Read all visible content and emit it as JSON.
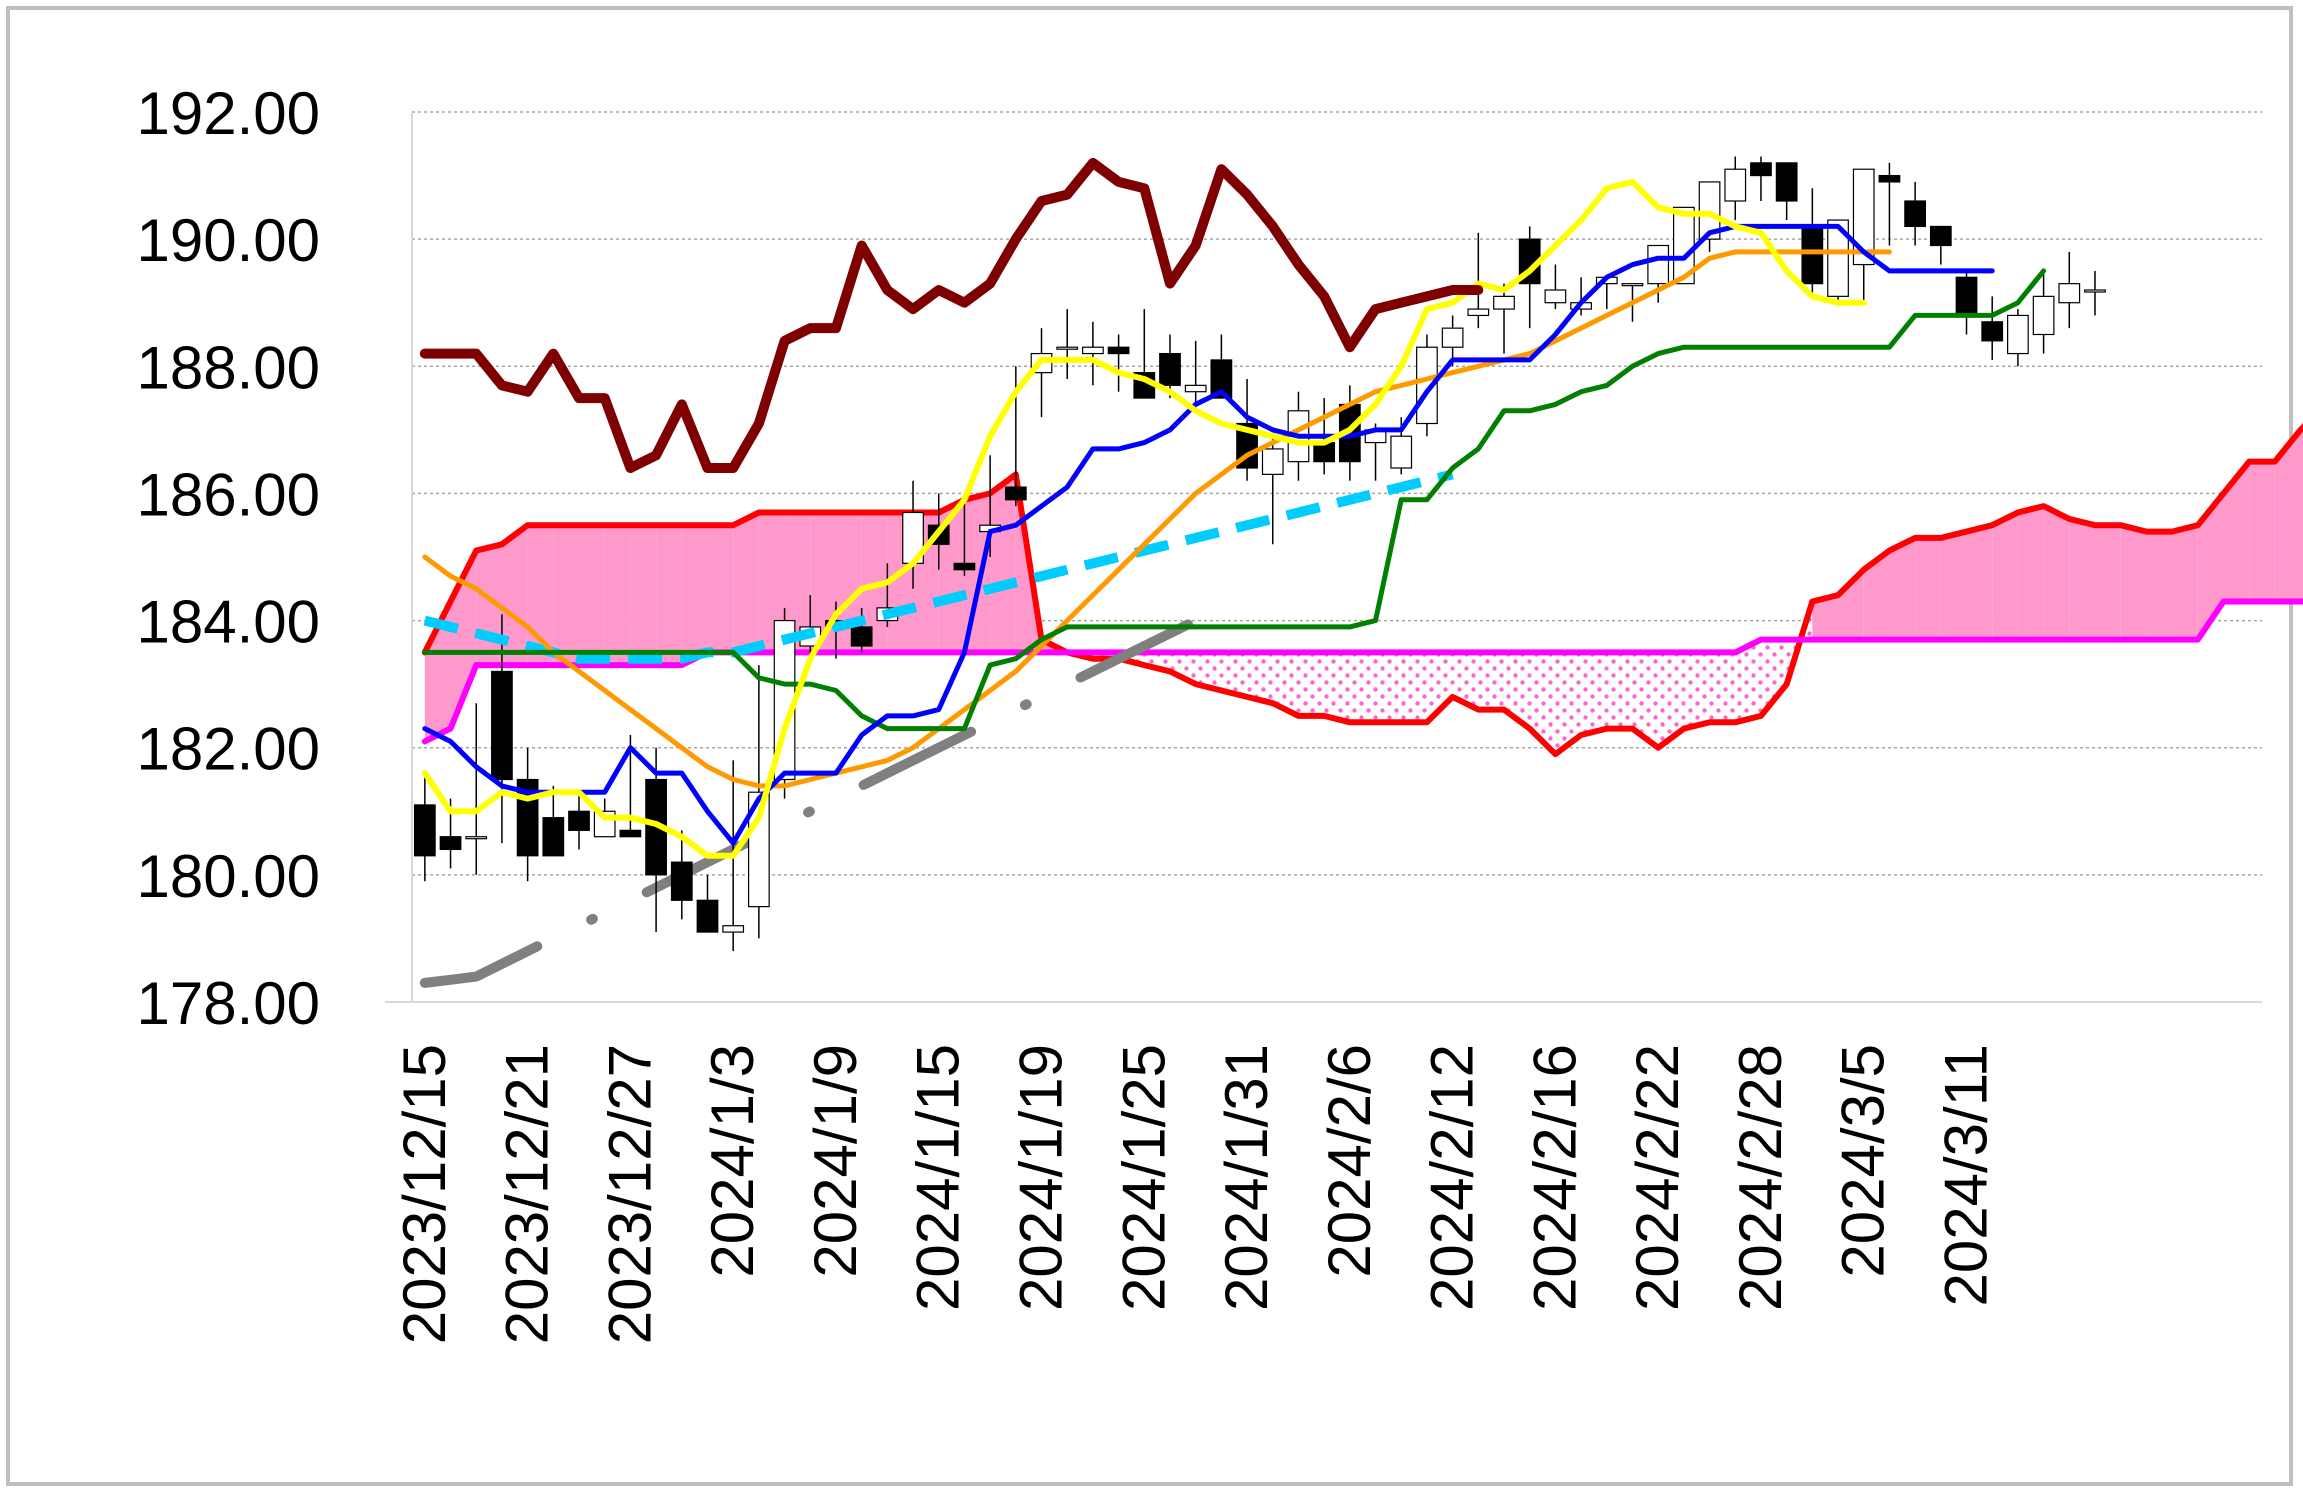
{
  "chart_data": {
    "type": "line",
    "title": "",
    "xlabel": "",
    "ylabel": "",
    "ylim": [
      178,
      192
    ],
    "yticks": [
      178,
      180,
      182,
      184,
      186,
      188,
      190,
      192
    ],
    "ytick_labels": [
      "178.00",
      "180.00",
      "182.00",
      "184.00",
      "186.00",
      "188.00",
      "190.00",
      "192.00"
    ],
    "grid": "horizontal-dotted",
    "legend": "none",
    "x_tick_labels": [
      "2023/12/15",
      "2023/12/21",
      "2023/12/27",
      "2024/1/3",
      "2024/1/9",
      "2024/1/15",
      "2024/1/19",
      "2024/1/25",
      "2024/1/31",
      "2024/2/6",
      "2024/2/12",
      "2024/2/16",
      "2024/2/22",
      "2024/2/28",
      "2024/3/5",
      "2024/3/11"
    ],
    "x_tick_index": [
      0,
      4,
      8,
      12,
      16,
      20,
      24,
      28,
      32,
      36,
      40,
      44,
      48,
      52,
      56,
      60
    ],
    "n_slots": 72,
    "candles": {
      "open": [
        181.1,
        180.6,
        180.6,
        183.2,
        181.5,
        180.9,
        181.0,
        180.6,
        180.7,
        181.5,
        180.2,
        179.6,
        179.1,
        179.5,
        181.5,
        183.6,
        184.0,
        183.9,
        184.0,
        184.9,
        185.5,
        184.9,
        185.4,
        186.1,
        187.9,
        188.3,
        188.2,
        188.3,
        187.9,
        188.2,
        187.6,
        188.1,
        187.1,
        186.3,
        186.5,
        186.8,
        187.4,
        186.8,
        186.4,
        187.1,
        188.3,
        188.8,
        188.9,
        190.0,
        189.0,
        188.9,
        189.3,
        189.3,
        189.3,
        189.3,
        190.0,
        190.6,
        191.2,
        191.2,
        190.2,
        189.1,
        189.6,
        191.0,
        190.6,
        190.2,
        189.4,
        188.7,
        188.2,
        188.5,
        189.0,
        189.2
      ],
      "high": [
        181.6,
        181.2,
        182.7,
        184.1,
        182.0,
        181.4,
        181.3,
        181.2,
        182.2,
        182.0,
        180.7,
        180.0,
        181.8,
        183.3,
        184.2,
        184.4,
        184.3,
        184.2,
        184.9,
        186.2,
        186.0,
        186.0,
        186.6,
        188.0,
        188.6,
        188.9,
        188.7,
        188.5,
        188.9,
        188.5,
        188.4,
        188.5,
        187.8,
        186.9,
        187.6,
        187.5,
        187.7,
        187.1,
        187.2,
        188.5,
        188.8,
        190.1,
        189.3,
        190.2,
        189.6,
        189.4,
        189.4,
        189.3,
        189.5,
        190.0,
        190.6,
        191.3,
        191.3,
        191.2,
        190.8,
        190.2,
        191.1,
        191.2,
        190.9,
        190.2,
        189.5,
        189.1,
        188.9,
        189.5,
        189.8,
        189.5
      ],
      "low": [
        179.9,
        180.1,
        180.0,
        180.5,
        179.9,
        180.4,
        180.4,
        180.6,
        180.6,
        179.1,
        179.3,
        179.3,
        178.8,
        179.0,
        181.2,
        183.5,
        183.4,
        183.5,
        183.9,
        184.5,
        184.8,
        184.7,
        185.0,
        185.8,
        187.2,
        187.8,
        187.7,
        187.6,
        187.5,
        187.5,
        187.4,
        187.5,
        186.2,
        185.2,
        186.2,
        186.3,
        186.2,
        186.2,
        186.3,
        186.9,
        188.0,
        188.6,
        188.2,
        188.6,
        188.9,
        188.8,
        188.9,
        188.7,
        189.0,
        189.3,
        189.8,
        190.3,
        190.6,
        190.3,
        189.1,
        189.0,
        189.0,
        189.9,
        189.9,
        189.6,
        188.5,
        188.1,
        188.0,
        188.2,
        188.6,
        188.8
      ],
      "close": [
        180.3,
        180.4,
        180.6,
        181.5,
        180.3,
        180.3,
        180.7,
        181.0,
        180.6,
        180.0,
        179.6,
        179.1,
        179.2,
        181.3,
        184.0,
        183.9,
        183.9,
        183.6,
        184.2,
        185.7,
        185.2,
        184.8,
        185.5,
        185.9,
        188.2,
        188.3,
        188.3,
        188.2,
        187.5,
        187.7,
        187.7,
        187.5,
        186.4,
        186.7,
        187.3,
        186.5,
        186.5,
        187.0,
        186.9,
        188.3,
        188.6,
        188.9,
        189.1,
        189.3,
        189.2,
        189.0,
        189.4,
        189.3,
        189.9,
        190.5,
        190.9,
        191.1,
        191.0,
        190.6,
        189.3,
        190.3,
        191.1,
        190.9,
        190.2,
        189.9,
        188.8,
        188.4,
        188.8,
        189.1,
        189.3,
        189.2
      ]
    },
    "series": [
      {
        "values": [
          188.2,
          188.2,
          188.2,
          187.7,
          187.6,
          188.2,
          187.5,
          187.5,
          186.4,
          186.6,
          187.4,
          186.4,
          186.4,
          187.1,
          188.4,
          188.6,
          188.6,
          189.9,
          189.2,
          188.9,
          189.2,
          189.0,
          189.3,
          190.0,
          190.6,
          190.7,
          191.2,
          190.9,
          190.8,
          189.3,
          189.9,
          191.1,
          190.7,
          190.2,
          189.6,
          189.1,
          188.3,
          188.9,
          189.0,
          189.1,
          189.2,
          189.2
        ],
        "color": "#7f0000",
        "width": 10
      },
      {
        "values": [
          181.6,
          181.0,
          181.0,
          181.3,
          181.2,
          181.3,
          181.3,
          180.9,
          180.9,
          180.8,
          180.6,
          180.3,
          180.3,
          180.9,
          182.3,
          183.4,
          184.1,
          184.5,
          184.6,
          184.9,
          185.4,
          185.9,
          186.9,
          187.6,
          188.1,
          188.1,
          188.1,
          187.9,
          187.8,
          187.6,
          187.3,
          187.1,
          187.0,
          186.9,
          186.8,
          186.8,
          187.0,
          187.4,
          188.0,
          188.9,
          189.0,
          189.3,
          189.2,
          189.5,
          189.9,
          190.3,
          190.8,
          190.9,
          190.5,
          190.4,
          190.4,
          190.2,
          190.1,
          189.5,
          189.1,
          189.0,
          189.0
        ],
        "color": "#ffff00",
        "width": 6
      },
      {
        "values": [
          182.3,
          182.1,
          181.7,
          181.4,
          181.3,
          181.3,
          181.3,
          181.3,
          182.0,
          181.6,
          181.6,
          181.0,
          180.5,
          181.2,
          181.6,
          181.6,
          181.6,
          182.2,
          182.5,
          182.5,
          182.6,
          183.5,
          185.4,
          185.5,
          185.8,
          186.1,
          186.7,
          186.7,
          186.8,
          187.0,
          187.4,
          187.6,
          187.2,
          187.0,
          186.9,
          186.9,
          186.9,
          187.0,
          187.0,
          187.6,
          188.1,
          188.1,
          188.1,
          188.1,
          188.5,
          189.0,
          189.4,
          189.6,
          189.7,
          189.7,
          190.1,
          190.2,
          190.2,
          190.2,
          190.2,
          190.2,
          189.8,
          189.5,
          189.5,
          189.5,
          189.5,
          189.5
        ],
        "color": "#0000ff",
        "width": 5
      },
      {
        "values": [
          183.5,
          183.5,
          183.5,
          183.5,
          183.5,
          183.5,
          183.5,
          183.5,
          183.5,
          183.5,
          183.5,
          183.5,
          183.5,
          183.1,
          183.0,
          183.0,
          182.9,
          182.5,
          182.3,
          182.3,
          182.3,
          182.3,
          183.3,
          183.4,
          183.7,
          183.9,
          183.9,
          183.9,
          183.9,
          183.9,
          183.9,
          183.9,
          183.9,
          183.9,
          183.9,
          183.9,
          183.9,
          184.0,
          185.9,
          185.9,
          186.4,
          186.7,
          187.3,
          187.3,
          187.4,
          187.6,
          187.7,
          188.0,
          188.2,
          188.3,
          188.3,
          188.3,
          188.3,
          188.3,
          188.3,
          188.3,
          188.3,
          188.3,
          188.8,
          188.8,
          188.8,
          188.8,
          189.0,
          189.5
        ],
        "color": "#007f00",
        "width": 5
      },
      {
        "values": [
          185.0,
          184.7,
          184.5,
          184.2,
          183.9,
          183.5,
          183.2,
          182.9,
          182.6,
          182.3,
          182.0,
          181.7,
          181.5,
          181.4,
          181.4,
          181.5,
          181.6,
          181.7,
          181.8,
          182.0,
          182.3,
          182.6,
          182.9,
          183.2,
          183.6,
          184.0,
          184.4,
          184.8,
          185.2,
          185.6,
          186.0,
          186.3,
          186.6,
          186.8,
          187.0,
          187.2,
          187.4,
          187.6,
          187.7,
          187.8,
          187.9,
          188.0,
          188.1,
          188.2,
          188.4,
          188.6,
          188.8,
          189.0,
          189.2,
          189.4,
          189.7,
          189.8,
          189.8,
          189.8,
          189.8,
          189.8,
          189.8,
          189.8
        ],
        "color": "#ff9900",
        "width": 5
      },
      {
        "values": [
          184.0,
          183.9,
          183.8,
          183.7,
          183.6,
          183.5,
          183.4,
          183.4,
          183.4,
          183.4,
          183.4,
          183.5,
          183.5,
          183.6,
          183.7,
          183.8,
          183.9,
          184.0,
          184.1,
          184.2,
          184.3,
          184.4,
          184.5,
          184.6,
          184.7,
          184.8,
          184.9,
          185.0,
          185.1,
          185.2,
          185.3,
          185.4,
          185.5,
          185.6,
          185.7,
          185.8,
          185.9,
          186.0,
          186.1,
          186.2,
          186.3
        ],
        "color": "#00ccff",
        "width": 10,
        "dash": "dashed"
      },
      {
        "values": [
          178.3,
          178.35,
          178.4,
          178.6,
          178.8,
          179.0,
          179.2,
          179.4,
          179.6,
          179.8,
          180.0,
          180.2,
          180.4,
          180.6,
          180.8,
          181.0,
          181.2,
          181.4,
          181.6,
          181.8,
          182.0,
          182.2,
          182.4,
          182.6,
          182.8,
          183.0,
          183.2,
          183.4,
          183.6,
          183.8,
          184.0,
          184.2
        ],
        "color": "#808080",
        "width": 10,
        "dash": "dashdot"
      },
      {
        "values": [
          183.5,
          184.3,
          185.1,
          185.2,
          185.5,
          185.5,
          185.5,
          185.5,
          185.5,
          185.5,
          185.5,
          185.5,
          185.5,
          185.7,
          185.7,
          185.7,
          185.7,
          185.7,
          185.7,
          185.7,
          185.7,
          185.9,
          186.0,
          186.3,
          183.7,
          183.5,
          183.4,
          183.4,
          183.3,
          183.2,
          183.0,
          182.9,
          182.8,
          182.7,
          182.5,
          182.5,
          182.4,
          182.4,
          182.4,
          182.4,
          182.8,
          182.6,
          182.6,
          182.3,
          181.9,
          182.2,
          182.3,
          182.3,
          182.0,
          182.3,
          182.4,
          182.4,
          182.5,
          183.0,
          184.3,
          184.4,
          184.8,
          185.1,
          185.3,
          185.3,
          185.4,
          185.5,
          185.7,
          185.8,
          185.6,
          185.5,
          185.5,
          185.4,
          185.4,
          185.5,
          186.0,
          186.5,
          186.5,
          187.0,
          187.4,
          187.7,
          187.7
        ],
        "color": "#ff0000",
        "width": 6
      },
      {
        "values": [
          182.1,
          182.3,
          183.3,
          183.3,
          183.3,
          183.3,
          183.3,
          183.3,
          183.3,
          183.3,
          183.3,
          183.5,
          183.5,
          183.5,
          183.5,
          183.5,
          183.5,
          183.5,
          183.5,
          183.5,
          183.5,
          183.5,
          183.5,
          183.5,
          183.5,
          183.5,
          183.5,
          183.5,
          183.5,
          183.5,
          183.5,
          183.5,
          183.5,
          183.5,
          183.5,
          183.5,
          183.5,
          183.5,
          183.5,
          183.5,
          183.5,
          183.5,
          183.5,
          183.5,
          183.5,
          183.5,
          183.5,
          183.5,
          183.5,
          183.5,
          183.5,
          183.5,
          183.7,
          183.7,
          183.7,
          183.7,
          183.7,
          183.7,
          183.7,
          183.7,
          183.7,
          183.7,
          183.7,
          183.7,
          183.7,
          183.7,
          183.7,
          183.7,
          183.7,
          183.7,
          184.3,
          184.3,
          184.3,
          184.3,
          184.3,
          184.3,
          184.3
        ],
        "color": "#ff00ff",
        "width": 6
      }
    ],
    "colors": {
      "cloud_bull": "#ff99cc",
      "cloud_bear": "#ff66cc",
      "grid": "#a6a6a6",
      "axis": "#d9d9d9",
      "candle_up": "#ffffff",
      "candle_down": "#000000"
    }
  }
}
